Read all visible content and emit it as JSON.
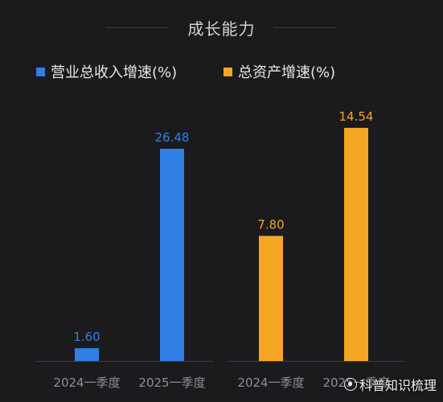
{
  "chart_data": {
    "type": "bar",
    "title": "成长能力",
    "groups": [
      {
        "series": "营业总收入增速(%)",
        "color": "#2f7fe6",
        "categories": [
          "2024一季度",
          "2025一季度"
        ],
        "values": [
          1.6,
          26.48
        ],
        "labels": [
          "1.60",
          "26.48"
        ]
      },
      {
        "series": "总资产增速(%)",
        "color": "#f5a623",
        "categories": [
          "2024一季度",
          "2025一季度"
        ],
        "values": [
          7.8,
          14.54
        ],
        "labels": [
          "7.80",
          "14.54"
        ]
      }
    ],
    "grid": false,
    "legend_position": "top"
  },
  "watermark": "科普知识梳理"
}
